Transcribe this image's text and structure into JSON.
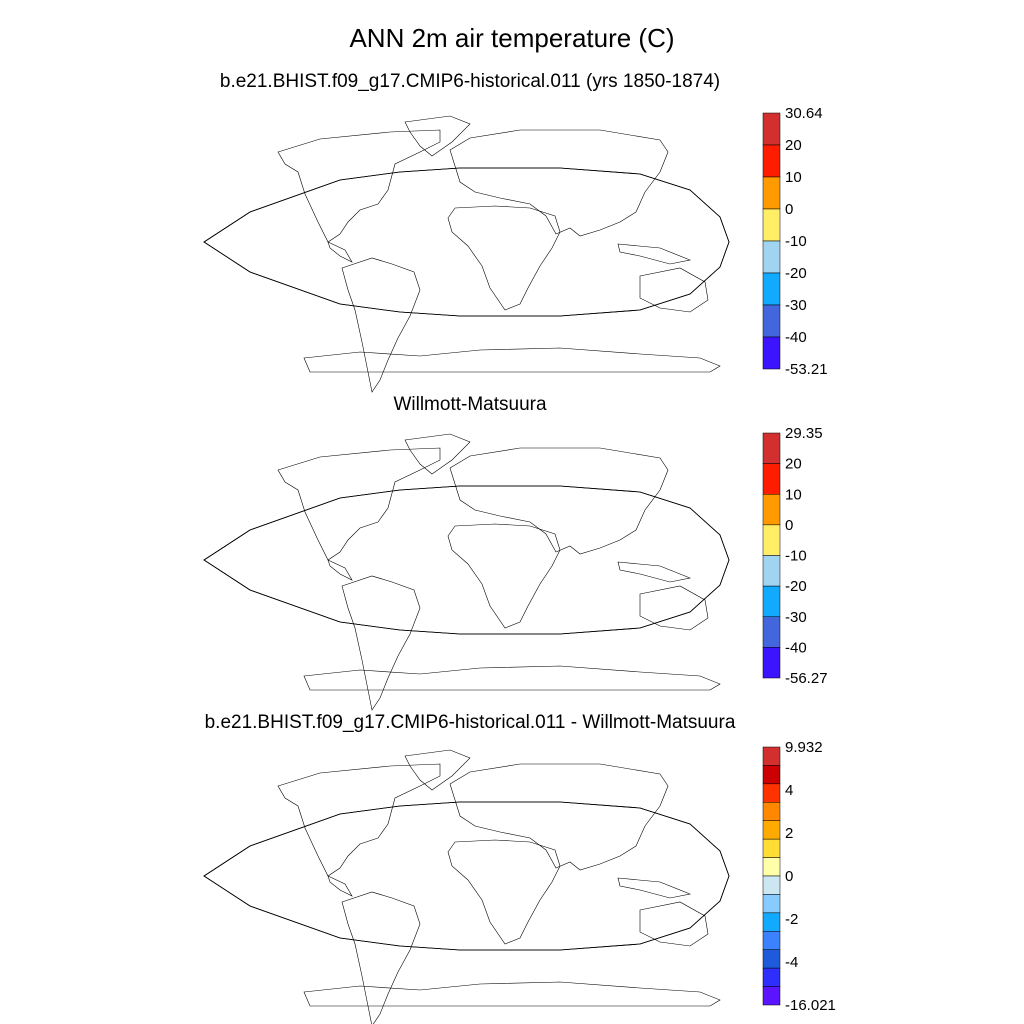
{
  "title": "ANN 2m air temperature (C)",
  "panels": [
    {
      "title": "b.e21.BHIST.f09_g17.CMIP6-historical.011 (yrs 1850-1874)",
      "colorbar": {
        "labels": [
          "30.64",
          "20",
          "10",
          "0",
          "-10",
          "-20",
          "-30",
          "-40",
          "-53.21"
        ],
        "colors": [
          "#d32f2f",
          "#ff1c00",
          "#ff9a00",
          "#ffee66",
          "#a0d4f0",
          "#11aaff",
          "#4466dd",
          "#3c14ff"
        ]
      }
    },
    {
      "title": "Willmott-Matsuura",
      "colorbar": {
        "labels": [
          "29.35",
          "20",
          "10",
          "0",
          "-10",
          "-20",
          "-30",
          "-40",
          "-56.27"
        ],
        "colors": [
          "#d32f2f",
          "#ff1c00",
          "#ff9a00",
          "#ffee66",
          "#a0d4f0",
          "#11aaff",
          "#4466dd",
          "#3c14ff"
        ]
      }
    },
    {
      "title": "b.e21.BHIST.f09_g17.CMIP6-historical.011 - Willmott-Matsuura",
      "colorbar": {
        "labels": [
          "9.932",
          "4",
          "2",
          "0",
          "-2",
          "-4",
          "-16.021"
        ],
        "colors": [
          "#d32f2f",
          "#cc0000",
          "#ff3300",
          "#ff8800",
          "#ffaa00",
          "#ffdd33",
          "#ffffaa",
          "#cce6f2",
          "#88ccff",
          "#11aaff",
          "#3c82ff",
          "#1e5adc",
          "#2e2eff",
          "#5a14ff"
        ]
      }
    }
  ]
}
